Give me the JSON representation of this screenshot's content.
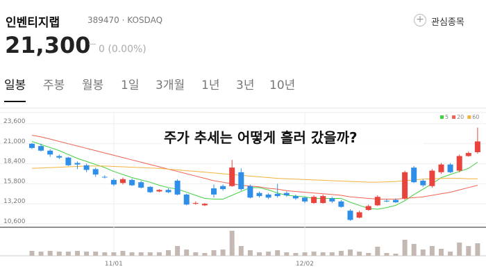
{
  "header": {
    "name": "인벤티지랩",
    "code": "389470",
    "market": "KOSDAQ",
    "price": "21,300",
    "change": "0 (0.00%)",
    "watch": "관심종목"
  },
  "tabs": {
    "items": [
      "일봉",
      "주봉",
      "월봉",
      "1일",
      "3개월",
      "1년",
      "3년",
      "10년"
    ],
    "selected": 0
  },
  "chart_data": {
    "type": "candlestick",
    "annotation": "주가 추세는 어떻게 흘러 갔을까?",
    "categories": [
      null,
      null,
      null,
      null,
      null,
      null,
      null,
      null,
      null,
      "11/01",
      null,
      null,
      null,
      null,
      null,
      null,
      null,
      null,
      null,
      null,
      null,
      null,
      null,
      null,
      null,
      null,
      null,
      null,
      null,
      null,
      "12/02",
      null,
      null,
      null,
      null,
      null,
      null,
      null,
      null,
      null,
      null,
      null,
      null,
      null,
      null,
      null,
      null,
      null,
      null,
      null
    ],
    "open": [
      21000,
      20700,
      20100,
      19400,
      19200,
      18500,
      18200,
      17700,
      16700,
      16300,
      15900,
      16300,
      16000,
      15400,
      14800,
      15000,
      16200,
      14400,
      13200,
      13000,
      15200,
      15500,
      15500,
      17300,
      15500,
      14600,
      14400,
      14500,
      14600,
      14200,
      14000,
      13300,
      13300,
      13900,
      13500,
      12300,
      11400,
      12400,
      13000,
      13600,
      13700,
      13900,
      17900,
      16200,
      15500,
      17300,
      18300,
      17500,
      19400,
      19900
    ],
    "high": [
      21100,
      21000,
      20300,
      19600,
      19300,
      18700,
      18400,
      17900,
      16900,
      16500,
      16600,
      16500,
      16200,
      15500,
      15100,
      15200,
      16400,
      14500,
      13500,
      13300,
      15700,
      15700,
      18900,
      17800,
      15700,
      14800,
      14600,
      15800,
      14800,
      14400,
      14100,
      14300,
      14400,
      14100,
      13700,
      12500,
      12300,
      13100,
      14300,
      13800,
      13900,
      17500,
      18100,
      16400,
      17700,
      18500,
      18500,
      19600,
      20000,
      23100
    ],
    "low": [
      20300,
      20000,
      19300,
      19000,
      18100,
      17700,
      17300,
      16700,
      16500,
      15500,
      15700,
      15500,
      15200,
      14600,
      14700,
      14600,
      14300,
      13000,
      13100,
      12900,
      14000,
      14900,
      15400,
      14900,
      13900,
      14000,
      13800,
      14000,
      14100,
      13700,
      13300,
      13200,
      13200,
      13300,
      12700,
      11000,
      11300,
      12300,
      12900,
      13400,
      13300,
      13700,
      15900,
      15400,
      15300,
      17100,
      17200,
      17300,
      19300,
      19700
    ],
    "close": [
      20450,
      20100,
      19600,
      19200,
      18200,
      18300,
      17600,
      17000,
      16650,
      15700,
      16400,
      15600,
      15300,
      14700,
      15000,
      14700,
      14400,
      13100,
      13300,
      13200,
      14400,
      15100,
      17900,
      15100,
      14000,
      14200,
      14000,
      14200,
      14300,
      13900,
      13500,
      14100,
      14200,
      13500,
      12800,
      11100,
      12100,
      12900,
      14100,
      13500,
      13400,
      17300,
      16000,
      15600,
      17500,
      18300,
      17300,
      19400,
      19800,
      21300
    ],
    "up_color": "#e8433d",
    "down_color": "#2f8fe8",
    "volume": [
      7,
      6,
      7,
      6,
      6,
      7,
      6,
      6,
      5,
      5,
      7,
      5,
      5,
      5,
      5,
      8,
      14,
      9,
      5,
      4,
      8,
      9,
      36,
      14,
      8,
      5,
      6,
      8,
      5,
      4,
      5,
      6,
      5,
      5,
      7,
      9,
      6,
      4,
      13,
      4,
      3,
      23,
      17,
      9,
      14,
      10,
      6,
      19,
      14,
      18
    ],
    "volume_color": "#c4b8b2",
    "ma": [
      {
        "name": "5",
        "color": "#3fd13f",
        "values": [
          21300,
          20900,
          20500,
          20100,
          19600,
          19100,
          18700,
          18300,
          17900,
          17400,
          17000,
          16600,
          16300,
          16000,
          15600,
          15300,
          15100,
          14700,
          14300,
          13900,
          13800,
          13800,
          14300,
          14800,
          15300,
          15300,
          15000,
          14600,
          14300,
          14200,
          14100,
          13900,
          13900,
          13900,
          13900,
          13400,
          13000,
          12600,
          12500,
          12700,
          13000,
          13600,
          14400,
          15100,
          15800,
          16600,
          17000,
          17400,
          17800,
          18600
        ]
      },
      {
        "name": "20",
        "color": "#f0624f",
        "values": [
          22100,
          21900,
          21600,
          21300,
          21000,
          20700,
          20400,
          20100,
          19800,
          19500,
          19200,
          18900,
          18600,
          18300,
          18000,
          17700,
          17400,
          17100,
          16800,
          16500,
          16200,
          16000,
          15800,
          15600,
          15500,
          15400,
          15200,
          15100,
          14900,
          14800,
          14700,
          14600,
          14500,
          14400,
          14300,
          14100,
          14000,
          13900,
          13800,
          13800,
          13800,
          13900,
          14000,
          14100,
          14300,
          14500,
          14700,
          15000,
          15300,
          15600
        ]
      },
      {
        "name": "60",
        "color": "#f5b13d",
        "values": [
          17800,
          17850,
          17900,
          17950,
          18000,
          18050,
          18100,
          18100,
          18100,
          18050,
          18000,
          17950,
          17900,
          17850,
          17800,
          17700,
          17600,
          17500,
          17400,
          17300,
          17200,
          17100,
          17000,
          16900,
          16800,
          16700,
          16600,
          16500,
          16450,
          16400,
          16350,
          16300,
          16250,
          16200,
          16150,
          16100,
          16050,
          16000,
          16000,
          16050,
          16100,
          16200,
          16300,
          16400,
          16450,
          16500,
          16500,
          16500,
          16450,
          16450
        ]
      }
    ],
    "ylim": [
      10600,
      23600
    ],
    "yticks": [
      {
        "value": 23600,
        "label": "23,600"
      },
      {
        "value": 21000,
        "label": "21,000"
      },
      {
        "value": 18400,
        "label": "18,400"
      },
      {
        "value": 15800,
        "label": "15,800"
      },
      {
        "value": 13200,
        "label": "13,200"
      },
      {
        "value": 10600,
        "label": "10,600"
      }
    ],
    "grid": true
  }
}
